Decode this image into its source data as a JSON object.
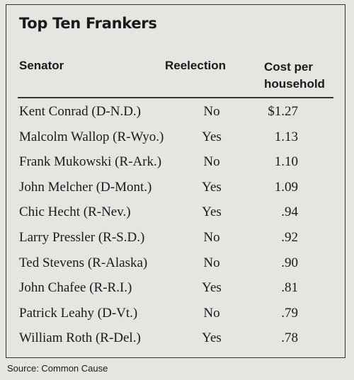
{
  "header": {
    "title": "Top Ten Frankers"
  },
  "table": {
    "columns": [
      "Senator",
      "Reelection",
      "Cost per household"
    ],
    "rows": [
      [
        "Kent Conrad (D-N.D.)",
        "No",
        "$1.27"
      ],
      [
        "Malcolm Wallop (R-Wyo.)",
        "Yes",
        "1.13"
      ],
      [
        "Frank Mukowski (R-Ark.)",
        "No",
        "1.10"
      ],
      [
        "John Melcher (D-Mont.)",
        "Yes",
        "1.09"
      ],
      [
        "Chic Hecht (R-Nev.)",
        "Yes",
        ".94"
      ],
      [
        "Larry Pressler (R-S.D.)",
        "No",
        ".92"
      ],
      [
        "Ted Stevens (R-Alaska)",
        "No",
        ".90"
      ],
      [
        "John Chafee (R-R.I.)",
        "Yes",
        ".81"
      ],
      [
        "Patrick Leahy (D-Vt.)",
        "No",
        ".79"
      ],
      [
        "William Roth (R-Del.)",
        "Yes",
        ".78"
      ]
    ]
  },
  "footer": {
    "source": "Source: Common Cause"
  }
}
